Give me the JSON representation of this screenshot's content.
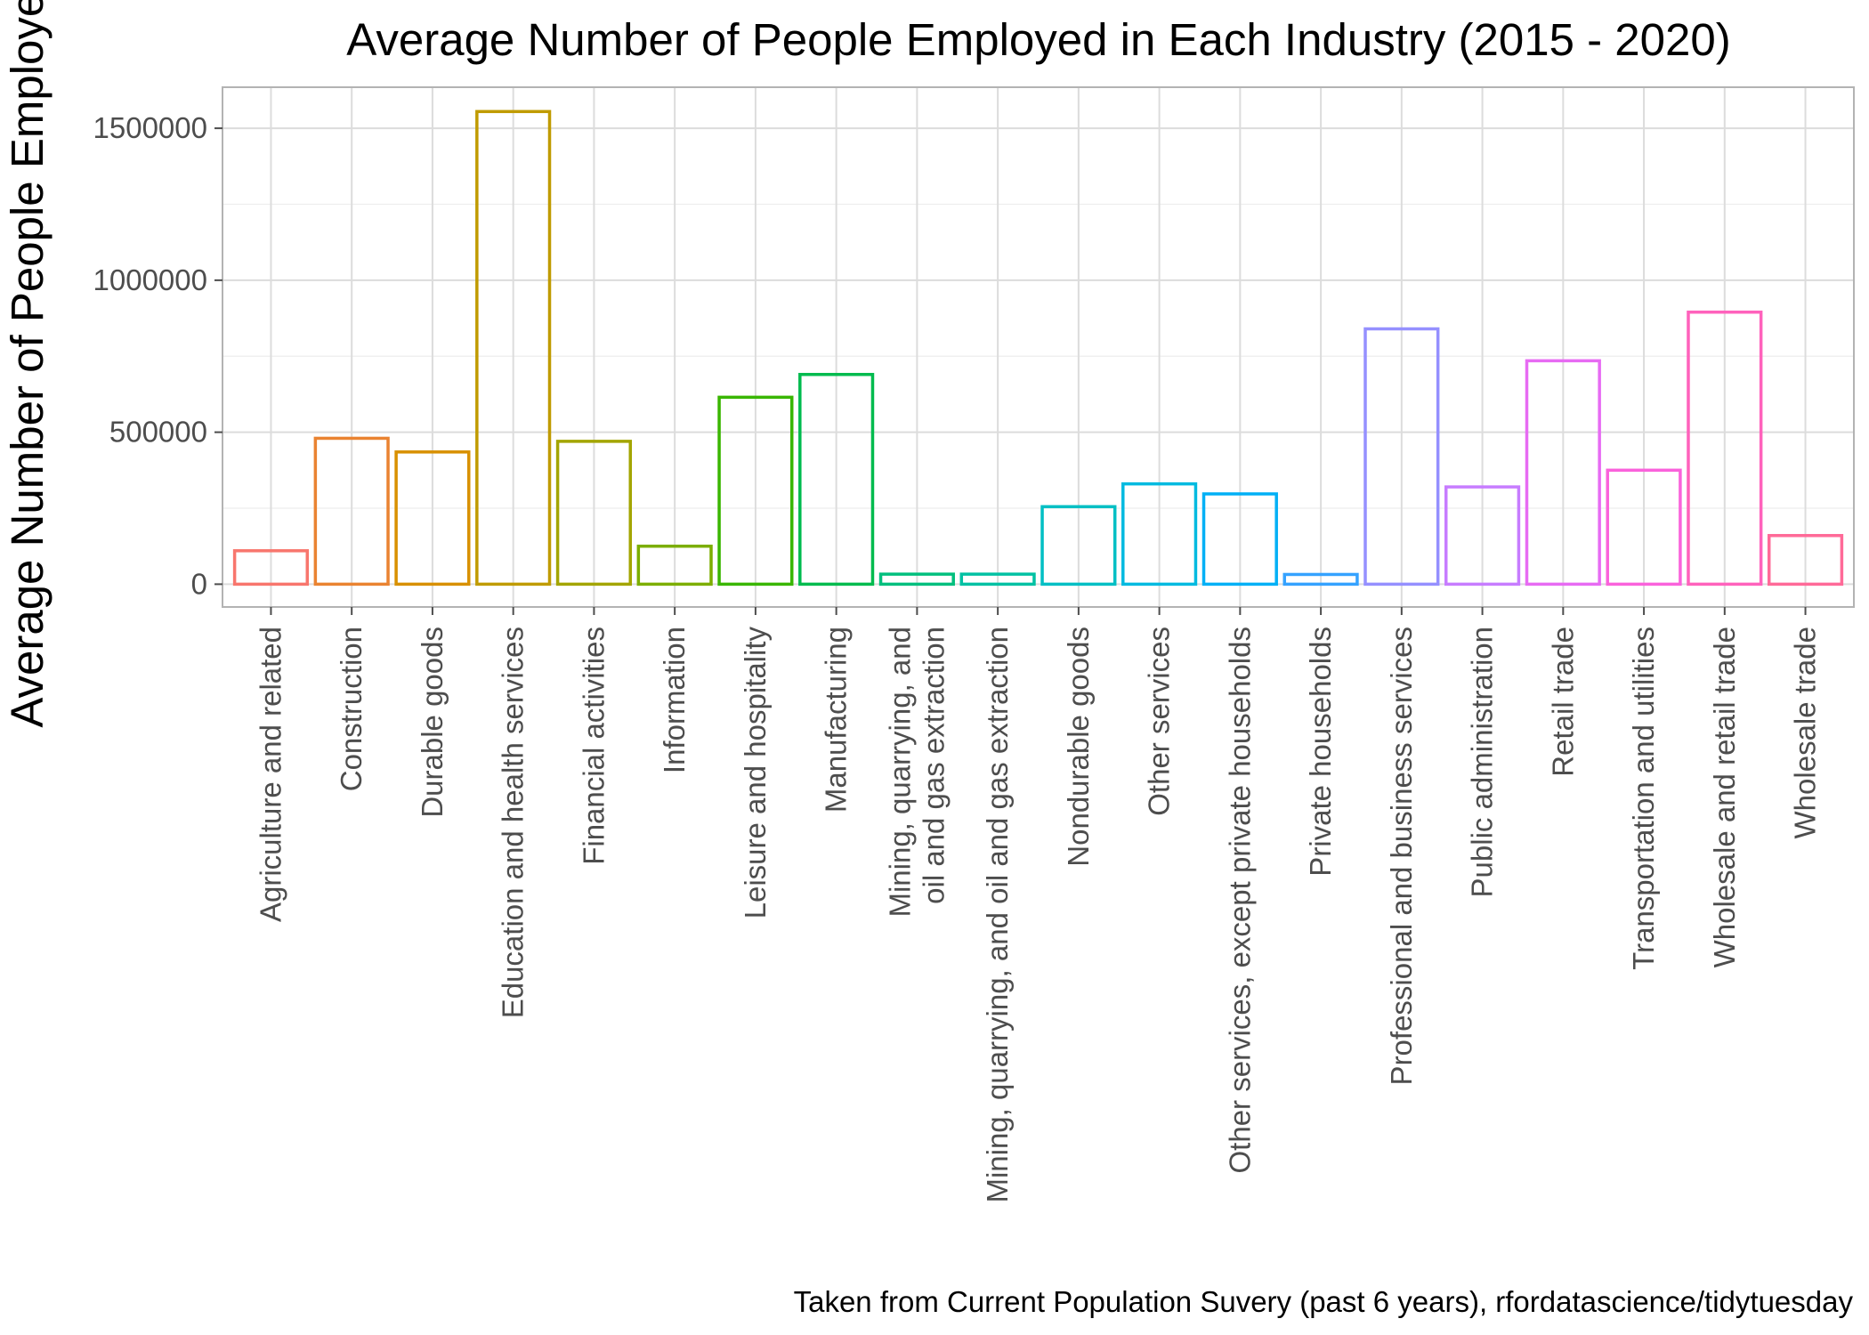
{
  "chart_data": {
    "type": "bar",
    "title": "Average Number of People Employed in Each Industry (2015 - 2020)",
    "xlabel": "",
    "ylabel": "Average Number of People Employed",
    "caption": "Taken from Current Population Suvery (past 6 years), rfordatascience/tidytuesday",
    "ylim": [
      -75000,
      1635000
    ],
    "yticks": [
      0,
      500000,
      1000000,
      1500000
    ],
    "ytick_labels": [
      "0",
      "500000",
      "1000000",
      "1500000"
    ],
    "grid": true,
    "legend": "none",
    "bar_fill": "none",
    "categories": [
      "Agriculture and related",
      "Construction",
      "Durable goods",
      "Education and health services",
      "Financial activities",
      "Information",
      "Leisure and hospitality",
      "Manufacturing",
      "Mining, quarrying, and\noil and gas extraction",
      "Mining, quarrying, and oil and gas extraction",
      "Nondurable goods",
      "Other services",
      "Other services, except private households",
      "Private households",
      "Professional and business services",
      "Public administration",
      "Retail trade",
      "Transportation and utilities",
      "Wholesale and retail trade",
      "Wholesale trade"
    ],
    "values": [
      110000,
      480000,
      435000,
      1555000,
      470000,
      125000,
      615000,
      690000,
      33000,
      33000,
      255000,
      330000,
      297000,
      32000,
      840000,
      320000,
      735000,
      375000,
      895000,
      160000
    ],
    "colors": [
      "#F8766D",
      "#EA8331",
      "#D89000",
      "#C09B00",
      "#A3A500",
      "#7CAE00",
      "#39B600",
      "#00BB4E",
      "#00BF7D",
      "#00C1A3",
      "#00BFC4",
      "#00BAE0",
      "#00B0F6",
      "#35A2FF",
      "#9590FF",
      "#C77CFF",
      "#E76BF3",
      "#FA62DB",
      "#FF62BC",
      "#FF6A98"
    ]
  }
}
